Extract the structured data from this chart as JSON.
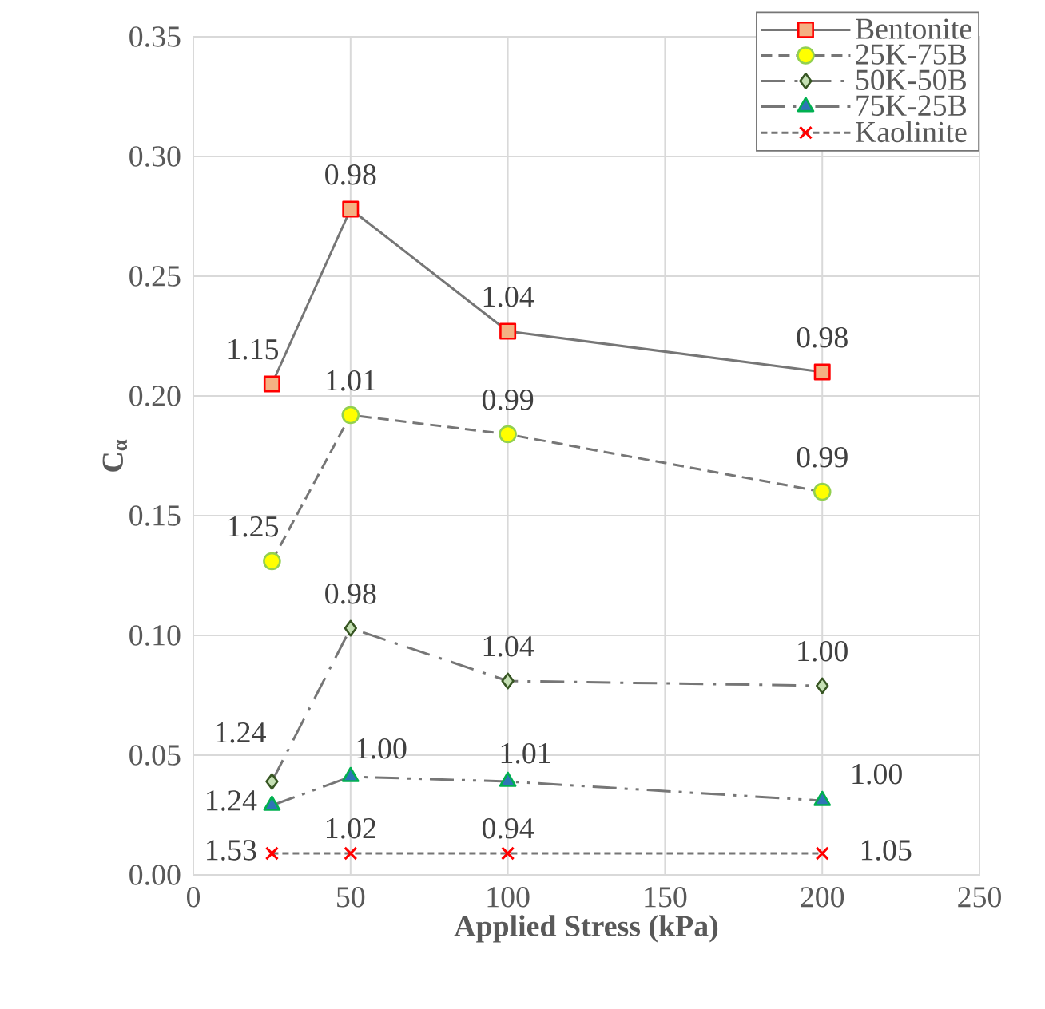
{
  "chart_data": {
    "type": "line",
    "xlabel": "Applied Stress (kPa)",
    "ylabel": "C$_{α}$",
    "xlim": [
      0,
      250
    ],
    "xticks": [
      0,
      50,
      100,
      150,
      200,
      250
    ],
    "ylim": [
      0,
      0.35
    ],
    "yticks": [
      {
        "value": 0,
        "label": "0.00"
      },
      {
        "value": 0.05,
        "label": "0.05"
      },
      {
        "value": 0.1,
        "label": "0.10"
      },
      {
        "value": 0.15,
        "label": "0.15"
      },
      {
        "value": 0.2,
        "label": "0.20"
      },
      {
        "value": 0.25,
        "label": "0.25"
      },
      {
        "value": 0.3,
        "label": "0.30"
      },
      {
        "value": 0.35,
        "label": "0.35"
      }
    ],
    "grid": true,
    "legend": "top right",
    "x": [
      25,
      50,
      100,
      200
    ],
    "series": [
      {
        "name": "Bentonite",
        "color": "#f4b183",
        "marker": "square",
        "line_style": "solid",
        "values": [
          0.205,
          0.278,
          0.227,
          0.21
        ]
      },
      {
        "name": "25K-75B",
        "color": "#ffff00",
        "marker": "circle",
        "line_style": "dashed",
        "values": [
          0.131,
          0.192,
          0.184,
          0.16
        ]
      },
      {
        "name": "50K-50B",
        "color": "#c5e0b4",
        "marker": "diamond",
        "line_style": "dashdot",
        "values": [
          0.039,
          0.103,
          0.081,
          0.079
        ]
      },
      {
        "name": "75K-25B",
        "color": "#2e75b6",
        "marker": "triangle",
        "line_style": "dashdotdot",
        "values": [
          0.029,
          0.041,
          0.039,
          0.031
        ]
      },
      {
        "name": "Kaolinite",
        "color": "#ff0000",
        "marker": "cross",
        "line_style": "dotted",
        "values": [
          0.009,
          0.009,
          0.009,
          0.009
        ]
      }
    ],
    "annotations": [
      {
        "text": "1.15",
        "x": 25,
        "y": 0.205
      },
      {
        "text": "0.98",
        "x": 50,
        "y": 0.278
      },
      {
        "text": "1.04",
        "x": 100,
        "y": 0.227
      },
      {
        "text": "0.98",
        "x": 200,
        "y": 0.21
      },
      {
        "text": "1.25",
        "x": 25,
        "y": 0.131
      },
      {
        "text": "1.01",
        "x": 50,
        "y": 0.192
      },
      {
        "text": "0.99",
        "x": 100,
        "y": 0.184
      },
      {
        "text": "0.99",
        "x": 200,
        "y": 0.16
      },
      {
        "text": "1.24",
        "x": 25,
        "y": 0.039
      },
      {
        "text": "0.98",
        "x": 50,
        "y": 0.103
      },
      {
        "text": "1.04",
        "x": 100,
        "y": 0.081
      },
      {
        "text": "1.00",
        "x": 200,
        "y": 0.079
      },
      {
        "text": "1.24",
        "x": 25,
        "y": 0.029
      },
      {
        "text": "1.00",
        "x": 50,
        "y": 0.041
      },
      {
        "text": "1.01",
        "x": 100,
        "y": 0.039
      },
      {
        "text": "1.00",
        "x": 200,
        "y": 0.031
      },
      {
        "text": "1.53",
        "x": 25,
        "y": 0.009
      },
      {
        "text": "1.02",
        "x": 50,
        "y": 0.009
      },
      {
        "text": "0.94",
        "x": 100,
        "y": 0.009
      },
      {
        "text": "1.05",
        "x": 200,
        "y": 0.009
      }
    ]
  }
}
